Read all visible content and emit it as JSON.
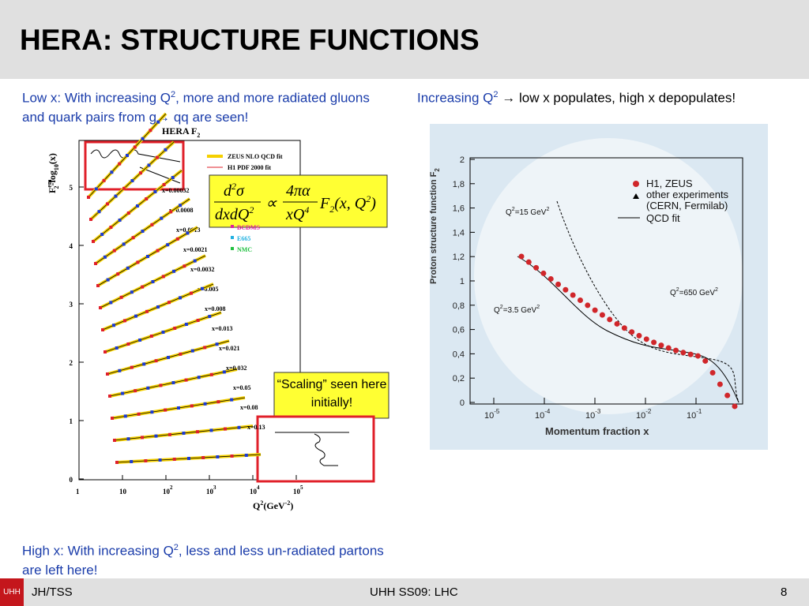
{
  "header": {
    "title": "HERA: STRUCTURE FUNCTIONS"
  },
  "left_caption": [
    "Low x: With increasing Q",
    "2",
    ", more and more radiated gluons and quark pairs from g",
    "→",
    " qq are seen!"
  ],
  "right_caption": [
    "Increasing Q",
    "2",
    " → ",
    "low x populates, high x depopulates!"
  ],
  "left_figure": {
    "title": "HERA F",
    "title_sub": "2",
    "ylabel": "F",
    "ylabel_sup": "em",
    "ylabel_sub": "2",
    "ylabel_rest": "-log",
    "ylabel_sub2": "10",
    "ylabel_end": "(x)",
    "xlabel": "Q",
    "xlabel_sup": "2",
    "xlabel_rest": "(GeV",
    "xlabel_sup2": "-2",
    "xlabel_end": ")",
    "yticks": [
      0,
      1,
      2,
      3,
      4,
      5
    ],
    "xticks": [
      {
        "label": "1"
      },
      {
        "label": "10"
      },
      {
        "label": "10",
        "exp": "2"
      },
      {
        "label": "10",
        "exp": "3"
      },
      {
        "label": "10",
        "exp": "4"
      },
      {
        "label": "10",
        "exp": "5"
      }
    ],
    "legend": [
      "ZEUS NLO QCD fit",
      "H1 PDF 2000 fit",
      "BCDMS",
      "E665",
      "NMC"
    ],
    "bins": [
      "x=0.00032",
      "x=0.0008",
      "x=0.0013",
      "x=0.0021",
      "x=0.0032",
      "x=0.005",
      "x=0.008",
      "x=0.013",
      "x=0.021",
      "x=0.032",
      "x=0.05",
      "x=0.08",
      "x=0.13"
    ]
  },
  "formula": {
    "d": "d",
    "two": "2",
    "sigma": "σ",
    "den": "dxdQ",
    "den_exp": "2",
    "prop": "∝",
    "num2": "4πα",
    "den2": "xQ",
    "den2_exp": "4",
    "F": "F",
    "F_sub": "2",
    "args": "x, Q",
    "args_exp": "2"
  },
  "scaling_note": "“Scaling” seen here initially!",
  "right_figure": {
    "ylabel": "Proton structure function F",
    "ylabel_sub": "2",
    "xlabel": "Momentum fraction x",
    "yticks": [
      {
        "value": 0,
        "label": "0"
      },
      {
        "value": 0.2,
        "label": "0,2"
      },
      {
        "value": 0.4,
        "label": "0,4"
      },
      {
        "value": 0.6,
        "label": "0,6"
      },
      {
        "value": 0.8,
        "label": "0,8"
      },
      {
        "value": 1,
        "label": "1"
      },
      {
        "value": 1.2,
        "label": "1,2"
      },
      {
        "value": 1.4,
        "label": "1,4"
      },
      {
        "value": 1.6,
        "label": "1,6"
      },
      {
        "value": 1.8,
        "label": "1,8"
      },
      {
        "value": 2,
        "label": "2"
      }
    ],
    "xticks": [
      {
        "value": -5,
        "base": "10",
        "exp": "-5"
      },
      {
        "value": -4,
        "base": "10",
        "exp": "-4"
      },
      {
        "value": -3,
        "base": "10",
        "exp": "-3"
      },
      {
        "value": -2,
        "base": "10",
        "exp": "-2"
      },
      {
        "value": -1,
        "base": "10",
        "exp": "-1"
      }
    ],
    "legend": [
      "H1, ZEUS",
      "other experiments",
      "(CERN, Fermilab)",
      "QCD fit"
    ],
    "annotations": [
      {
        "q": "Q",
        "e": "2",
        "t": "=15 GeV",
        "e2": "2"
      },
      {
        "q": "Q",
        "e": "2",
        "t": "=650 GeV",
        "e2": "2"
      },
      {
        "q": "Q",
        "e": "2",
        "t": "=3.5 GeV",
        "e2": "2"
      }
    ]
  },
  "bottom_caption": [
    "High x: With increasing Q",
    "2",
    ", less and less un-radiated partons are left here!"
  ],
  "footer": {
    "logo": "UHH",
    "left": "JH/TSS",
    "center": "UHH SS09: LHC",
    "page": "8"
  }
}
